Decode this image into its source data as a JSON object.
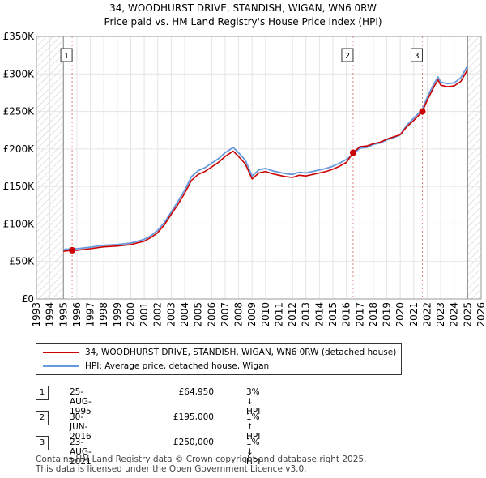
{
  "chart_data": {
    "type": "line",
    "title": "34, WOODHURST DRIVE, STANDISH, WIGAN, WN6 0RW",
    "subtitle": "Price paid vs. HM Land Registry's House Price Index (HPI)",
    "xlim": [
      1993,
      2026
    ],
    "ylim": [
      0,
      350000
    ],
    "x_ticks": [
      "1993",
      "1994",
      "1995",
      "1996",
      "1997",
      "1998",
      "1999",
      "2000",
      "2001",
      "2002",
      "2003",
      "2004",
      "2005",
      "2006",
      "2007",
      "2008",
      "2009",
      "2010",
      "2011",
      "2012",
      "2013",
      "2014",
      "2015",
      "2016",
      "2017",
      "2018",
      "2019",
      "2020",
      "2021",
      "2022",
      "2023",
      "2024",
      "2025",
      "2026"
    ],
    "y_ticks": [
      {
        "value": 0,
        "label": "£0"
      },
      {
        "value": 50000,
        "label": "£50K"
      },
      {
        "value": 100000,
        "label": "£100K"
      },
      {
        "value": 150000,
        "label": "£150K"
      },
      {
        "value": 200000,
        "label": "£200K"
      },
      {
        "value": 250000,
        "label": "£250K"
      },
      {
        "value": 300000,
        "label": "£300K"
      },
      {
        "value": 350000,
        "label": "£350K"
      }
    ],
    "hatch_before": 1995.0,
    "hatch_after": 2025.0,
    "series": [
      {
        "name": "34, WOODHURST DRIVE, STANDISH, WIGAN, WN6 0RW (detached house)",
        "color": "#cc0000",
        "points": [
          [
            1995.0,
            63500
          ],
          [
            1995.65,
            64950
          ],
          [
            1996.0,
            64800
          ],
          [
            1997.0,
            67000
          ],
          [
            1998.0,
            69500
          ],
          [
            1999.0,
            70500
          ],
          [
            2000.0,
            72500
          ],
          [
            2001.0,
            77000
          ],
          [
            2001.5,
            82000
          ],
          [
            2002.0,
            88500
          ],
          [
            2002.5,
            99000
          ],
          [
            2003.0,
            113000
          ],
          [
            2003.5,
            126000
          ],
          [
            2004.0,
            141000
          ],
          [
            2004.5,
            158000
          ],
          [
            2005.0,
            166000
          ],
          [
            2005.5,
            170000
          ],
          [
            2006.0,
            176000
          ],
          [
            2006.5,
            182000
          ],
          [
            2007.0,
            190000
          ],
          [
            2007.6,
            197000
          ],
          [
            2008.0,
            190000
          ],
          [
            2008.5,
            180000
          ],
          [
            2009.0,
            160000
          ],
          [
            2009.5,
            168000
          ],
          [
            2010.0,
            170000
          ],
          [
            2010.5,
            167000
          ],
          [
            2011.0,
            165000
          ],
          [
            2011.5,
            163000
          ],
          [
            2012.0,
            162000
          ],
          [
            2012.5,
            165000
          ],
          [
            2013.0,
            164000
          ],
          [
            2013.5,
            166000
          ],
          [
            2014.0,
            168000
          ],
          [
            2014.5,
            170000
          ],
          [
            2015.0,
            173000
          ],
          [
            2015.5,
            177000
          ],
          [
            2016.0,
            182000
          ],
          [
            2016.5,
            195000
          ],
          [
            2017.0,
            203000
          ],
          [
            2017.5,
            204000
          ],
          [
            2018.0,
            207000
          ],
          [
            2018.5,
            209000
          ],
          [
            2019.0,
            213000
          ],
          [
            2019.5,
            216000
          ],
          [
            2020.0,
            219000
          ],
          [
            2020.5,
            230000
          ],
          [
            2021.0,
            238000
          ],
          [
            2021.64,
            250000
          ],
          [
            2022.0,
            265000
          ],
          [
            2022.5,
            283000
          ],
          [
            2022.8,
            292000
          ],
          [
            2023.0,
            285000
          ],
          [
            2023.5,
            283000
          ],
          [
            2024.0,
            284000
          ],
          [
            2024.5,
            290000
          ],
          [
            2025.0,
            306000
          ]
        ]
      },
      {
        "name": "HPI: Average price, detached house, Wigan",
        "color": "#6699dd",
        "points": [
          [
            1995.0,
            66000
          ],
          [
            1995.65,
            67000
          ],
          [
            1996.0,
            67000
          ],
          [
            1997.0,
            69000
          ],
          [
            1998.0,
            71500
          ],
          [
            1999.0,
            72500
          ],
          [
            2000.0,
            74500
          ],
          [
            2001.0,
            79500
          ],
          [
            2001.5,
            84500
          ],
          [
            2002.0,
            91500
          ],
          [
            2002.5,
            102000
          ],
          [
            2003.0,
            116000
          ],
          [
            2003.5,
            130000
          ],
          [
            2004.0,
            145000
          ],
          [
            2004.5,
            163000
          ],
          [
            2005.0,
            171000
          ],
          [
            2005.5,
            175000
          ],
          [
            2006.0,
            181000
          ],
          [
            2006.5,
            187000
          ],
          [
            2007.0,
            195000
          ],
          [
            2007.6,
            202000
          ],
          [
            2008.0,
            195000
          ],
          [
            2008.5,
            185000
          ],
          [
            2009.0,
            164000
          ],
          [
            2009.5,
            172000
          ],
          [
            2010.0,
            174000
          ],
          [
            2010.5,
            171000
          ],
          [
            2011.0,
            169000
          ],
          [
            2011.5,
            167000
          ],
          [
            2012.0,
            166000
          ],
          [
            2012.5,
            169000
          ],
          [
            2013.0,
            168000
          ],
          [
            2013.5,
            170000
          ],
          [
            2014.0,
            172000
          ],
          [
            2014.5,
            174000
          ],
          [
            2015.0,
            177000
          ],
          [
            2015.5,
            181000
          ],
          [
            2016.0,
            186000
          ],
          [
            2016.5,
            193000
          ],
          [
            2017.0,
            201000
          ],
          [
            2017.5,
            202000
          ],
          [
            2018.0,
            206000
          ],
          [
            2018.5,
            208000
          ],
          [
            2019.0,
            212000
          ],
          [
            2019.5,
            215000
          ],
          [
            2020.0,
            219000
          ],
          [
            2020.5,
            232000
          ],
          [
            2021.0,
            241000
          ],
          [
            2021.64,
            253000
          ],
          [
            2022.0,
            269000
          ],
          [
            2022.5,
            287000
          ],
          [
            2022.8,
            296000
          ],
          [
            2023.0,
            289000
          ],
          [
            2023.5,
            287000
          ],
          [
            2024.0,
            288000
          ],
          [
            2024.5,
            295000
          ],
          [
            2025.0,
            311000
          ]
        ]
      }
    ],
    "sales": [
      {
        "label": "1",
        "date": "25-AUG-1995",
        "x": 1995.65,
        "price": 64950,
        "price_label": "£64,950",
        "hpi_label": "3% ↓ HPI"
      },
      {
        "label": "2",
        "date": "30-JUN-2016",
        "x": 2016.5,
        "price": 195000,
        "price_label": "£195,000",
        "hpi_label": "1% ↑ HPI"
      },
      {
        "label": "3",
        "date": "23-AUG-2021",
        "x": 2021.64,
        "price": 250000,
        "price_label": "£250,000",
        "hpi_label": "1% ↓ HPI"
      }
    ],
    "legend_position": "below"
  },
  "footer": {
    "line1": "Contains HM Land Registry data © Crown copyright and database right 2025.",
    "line2": "This data is licensed under the Open Government Licence v3.0."
  }
}
